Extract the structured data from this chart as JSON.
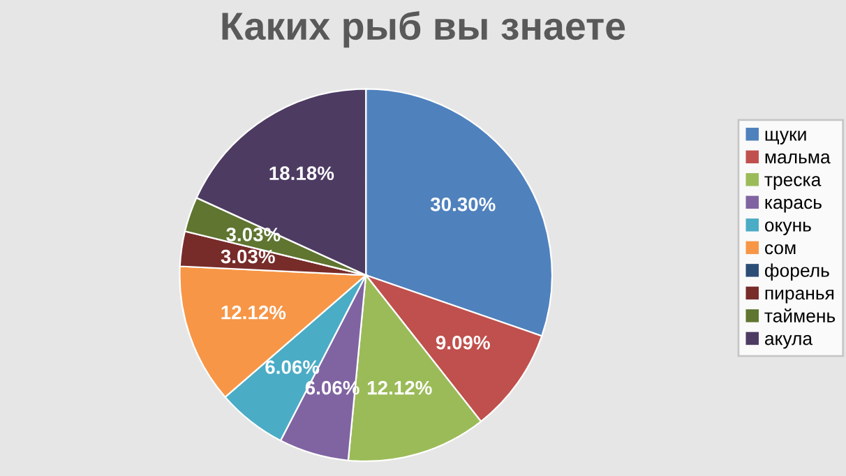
{
  "chart_data": {
    "type": "pie",
    "title": "Каких рыб вы знаете",
    "categories": [
      "щуки",
      "мальма",
      "треска",
      "карась",
      "окунь",
      "сом",
      "форель",
      "пиранья",
      "таймень",
      "акула"
    ],
    "values": [
      30.3,
      9.09,
      12.12,
      6.06,
      6.06,
      12.12,
      0,
      3.03,
      3.03,
      18.18
    ],
    "value_labels": [
      "30.30%",
      "9.09%",
      "12.12%",
      "6.06%",
      "6.06%",
      "12.12%",
      null,
      "3.03%",
      "3.03%",
      "18.18%"
    ],
    "colors": [
      "#4f81bd",
      "#c0504d",
      "#9bbb59",
      "#8064a2",
      "#4bacc6",
      "#f79646",
      "#2c4d75",
      "#772c2a",
      "#5f7530",
      "#4d3b62"
    ],
    "legend": "right"
  }
}
